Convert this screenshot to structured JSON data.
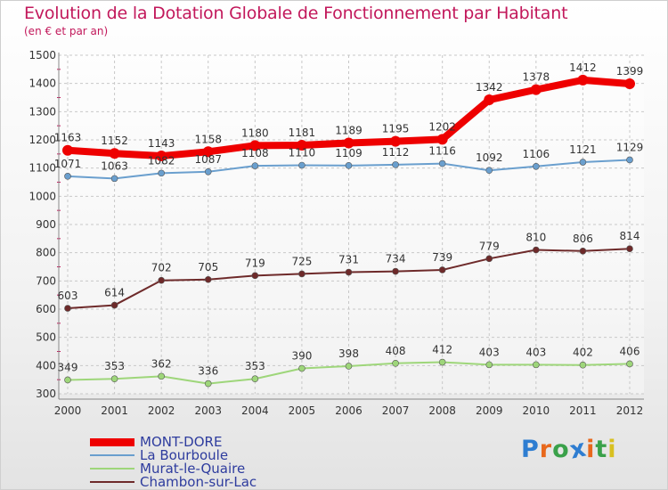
{
  "title": "Evolution de la Dotation Globale de Fonctionnement par Habitant",
  "subtitle": "(en € et par an)",
  "logo": {
    "text": "Proxiti",
    "letter_colors": [
      "#2e7dd1",
      "#e8681c",
      "#3aa14a",
      "#2e7dd1",
      "#e8681c",
      "#3aa14a",
      "#d8c020"
    ]
  },
  "chart_data": {
    "type": "line",
    "title": "Evolution de la Dotation Globale de Fonctionnement par Habitant",
    "subtitle": "(en € et par an)",
    "xlabel": "",
    "ylabel": "",
    "x": [
      "2000",
      "2001",
      "2002",
      "2003",
      "2004",
      "2005",
      "2006",
      "2007",
      "2008",
      "2009",
      "2010",
      "2011",
      "2012"
    ],
    "ylim": [
      300,
      1500
    ],
    "yticks": [
      300,
      400,
      500,
      600,
      700,
      800,
      900,
      1000,
      1100,
      1200,
      1300,
      1400,
      1500
    ],
    "grid": true,
    "legend_position": "bottom-left",
    "series": [
      {
        "name": "MONT-DORE",
        "color": "#ee0000",
        "values": [
          1163,
          1152,
          1143,
          1158,
          1180,
          1181,
          1189,
          1195,
          1202,
          1342,
          1378,
          1412,
          1399
        ]
      },
      {
        "name": "La Bourboule",
        "color": "#6a9fce",
        "values": [
          1071,
          1063,
          1082,
          1087,
          1108,
          1110,
          1109,
          1112,
          1116,
          1092,
          1106,
          1121,
          1129
        ]
      },
      {
        "name": "Murat-le-Quaire",
        "color": "#9ed67a",
        "values": [
          349,
          353,
          362,
          336,
          353,
          390,
          398,
          408,
          412,
          403,
          403,
          402,
          406
        ]
      },
      {
        "name": "Chambon-sur-Lac",
        "color": "#6e2a2a",
        "values": [
          603,
          614,
          702,
          705,
          719,
          725,
          731,
          734,
          739,
          779,
          810,
          806,
          814
        ]
      }
    ]
  }
}
